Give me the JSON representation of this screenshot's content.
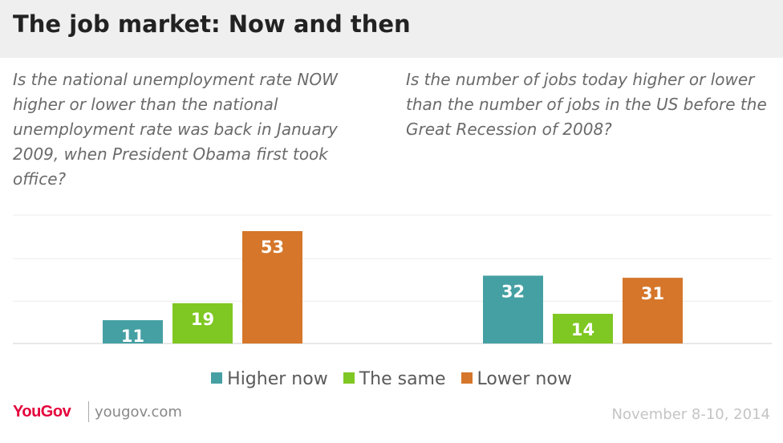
{
  "title": "The job market: Now and then",
  "logo_text": "YouGov",
  "website": "yougov.com",
  "date": "November 8-10, 2014",
  "colors": {
    "higher": "#45a0a3",
    "same": "#7fc722",
    "lower": "#d5762a"
  },
  "legend": [
    {
      "label": "Higher now",
      "color": "#45a0a3"
    },
    {
      "label": "The same",
      "color": "#7fc722"
    },
    {
      "label": "Lower now",
      "color": "#d5762a"
    }
  ],
  "chart_data": [
    {
      "type": "bar",
      "title": "Is the national unemployment rate NOW higher or lower than the national unemployment rate was back in January 2009, when President Obama first took office?",
      "categories": [
        "Higher now",
        "The same",
        "Lower now"
      ],
      "values": [
        11,
        19,
        53
      ],
      "ylim": [
        0,
        53
      ],
      "grid": true,
      "legend": "bottom-center"
    },
    {
      "type": "bar",
      "title": "Is the number of jobs today higher or lower than the number of jobs in the US before the Great Recession of 2008?",
      "categories": [
        "Higher now",
        "The same",
        "Lower now"
      ],
      "values": [
        32,
        14,
        31
      ],
      "ylim": [
        0,
        53
      ],
      "grid": true,
      "legend": "bottom-center"
    }
  ]
}
